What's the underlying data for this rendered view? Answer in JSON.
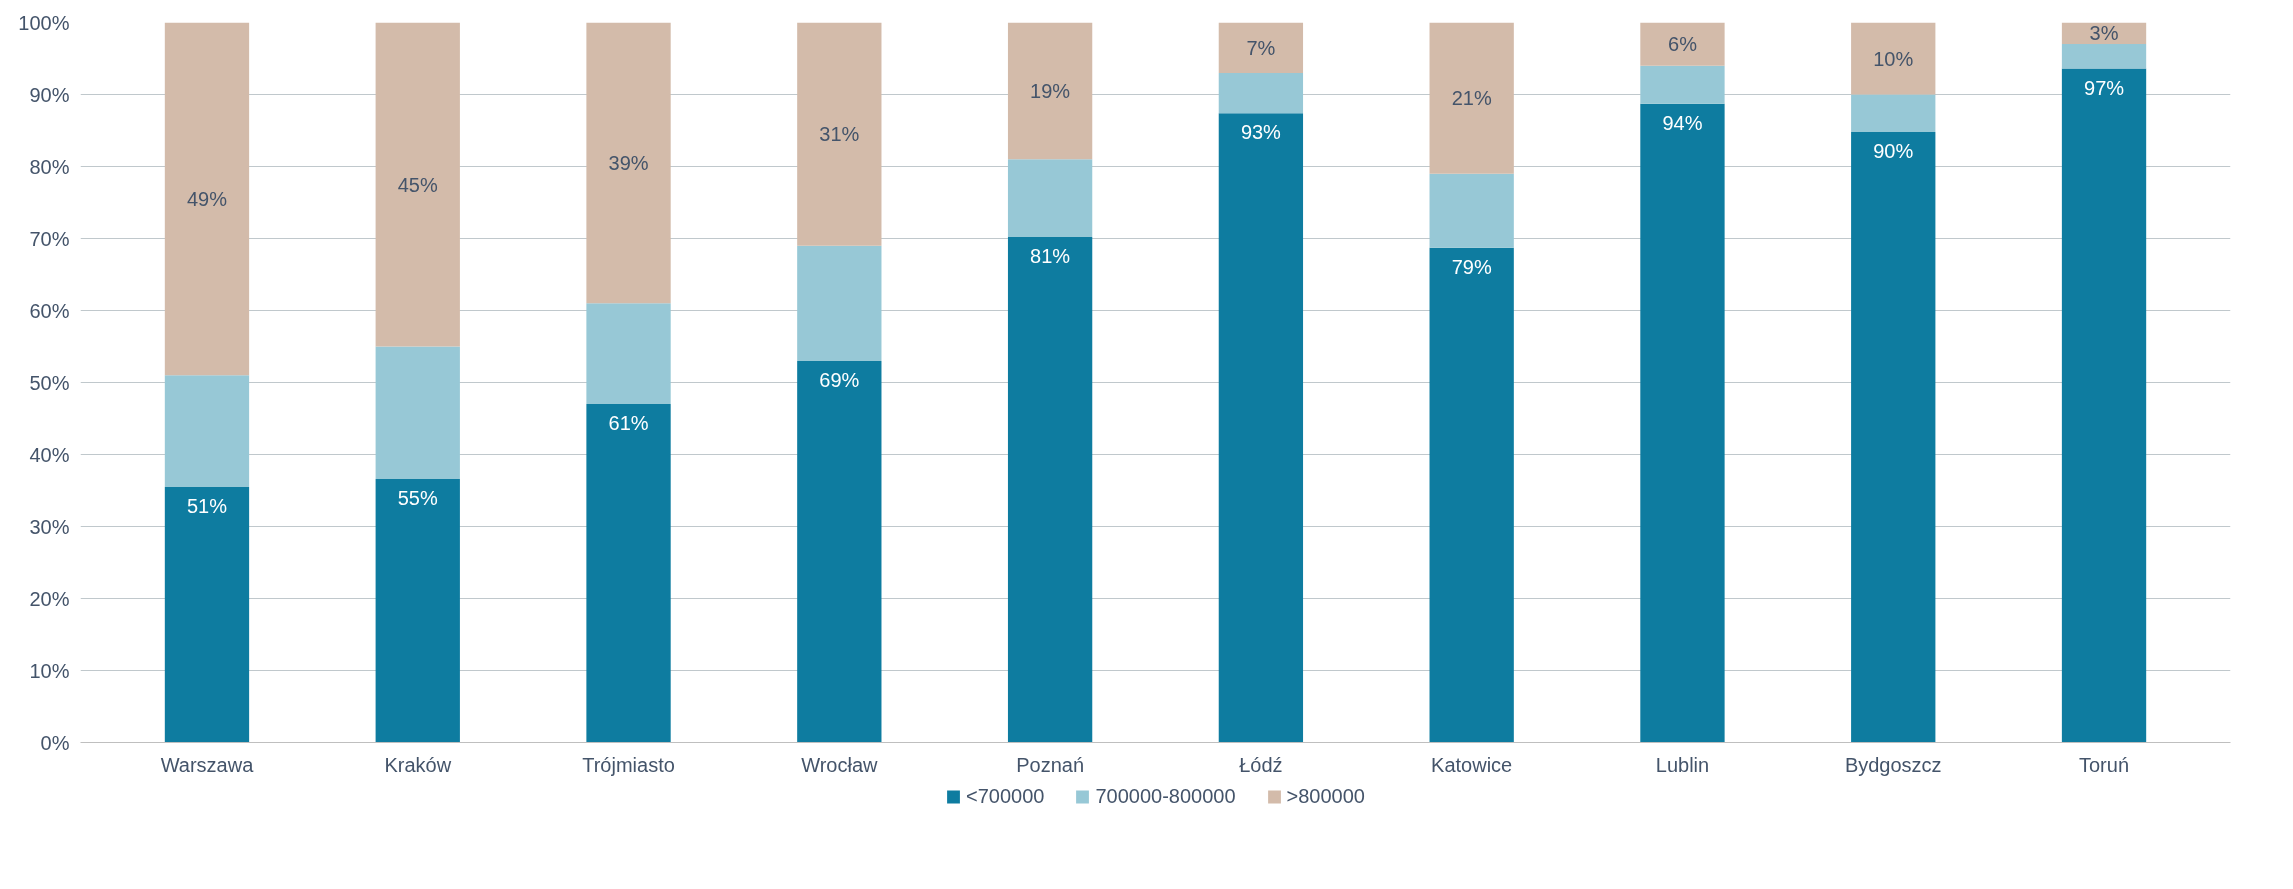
{
  "chart_data": {
    "type": "bar",
    "stacked": true,
    "categories": [
      "Warszawa",
      "Kraków",
      "Trójmiasto",
      "Wrocław",
      "Poznań",
      "Łódź",
      "Katowice",
      "Lublin",
      "Bydgoszcz",
      "Toruń"
    ],
    "series": [
      {
        "name": "<700000",
        "color": "#0e7ca0",
        "values": [
          35.5,
          36.6,
          47,
          53,
          70.2,
          87.4,
          68.7,
          88.7,
          84.8,
          93.6
        ]
      },
      {
        "name": "700000-800000",
        "color": "#97c8d6",
        "values": [
          15.5,
          18.4,
          14,
          16,
          10.8,
          5.6,
          10.3,
          5.3,
          5.2,
          3.4
        ]
      },
      {
        "name": ">800000",
        "color": "#d3bbaa",
        "values": [
          49,
          45,
          39,
          31,
          19,
          7,
          21,
          6,
          10,
          3
        ],
        "value_labels": [
          "49%",
          "45%",
          "39%",
          "31%",
          "19%",
          "7%",
          "21%",
          "6%",
          "10%",
          "3%"
        ]
      }
    ],
    "annotations": [
      {
        "text": "51%",
        "x": "Warszawa",
        "y": 35.5
      },
      {
        "text": "55%",
        "x": "Kraków",
        "y": 36.6
      },
      {
        "text": "61%",
        "x": "Trójmiasto",
        "y": 47
      },
      {
        "text": "69%",
        "x": "Wrocław",
        "y": 53
      },
      {
        "text": "81%",
        "x": "Poznań",
        "y": 70.2
      },
      {
        "text": "93%",
        "x": "Łódź",
        "y": 87.4
      },
      {
        "text": "79%",
        "x": "Katowice",
        "y": 68.7
      },
      {
        "text": "94%",
        "x": "Lublin",
        "y": 88.7
      },
      {
        "text": "90%",
        "x": "Bydgoszcz",
        "y": 84.8
      },
      {
        "text": "97%",
        "x": "Toruń",
        "y": 93.6
      }
    ],
    "ylim": [
      0,
      100
    ],
    "yticks": [
      {
        "value": 0,
        "label": "0%"
      },
      {
        "value": 10,
        "label": "10%"
      },
      {
        "value": 20,
        "label": "20%"
      },
      {
        "value": 30,
        "label": "30%"
      },
      {
        "value": 40,
        "label": "40%"
      },
      {
        "value": 50,
        "label": "50%"
      },
      {
        "value": 60,
        "label": "60%"
      },
      {
        "value": 70,
        "label": "70%"
      },
      {
        "value": 80,
        "label": "80%"
      },
      {
        "value": 90,
        "label": "90%"
      },
      {
        "value": 100,
        "label": "100%"
      }
    ],
    "grid": "y",
    "legend": "bottom"
  }
}
